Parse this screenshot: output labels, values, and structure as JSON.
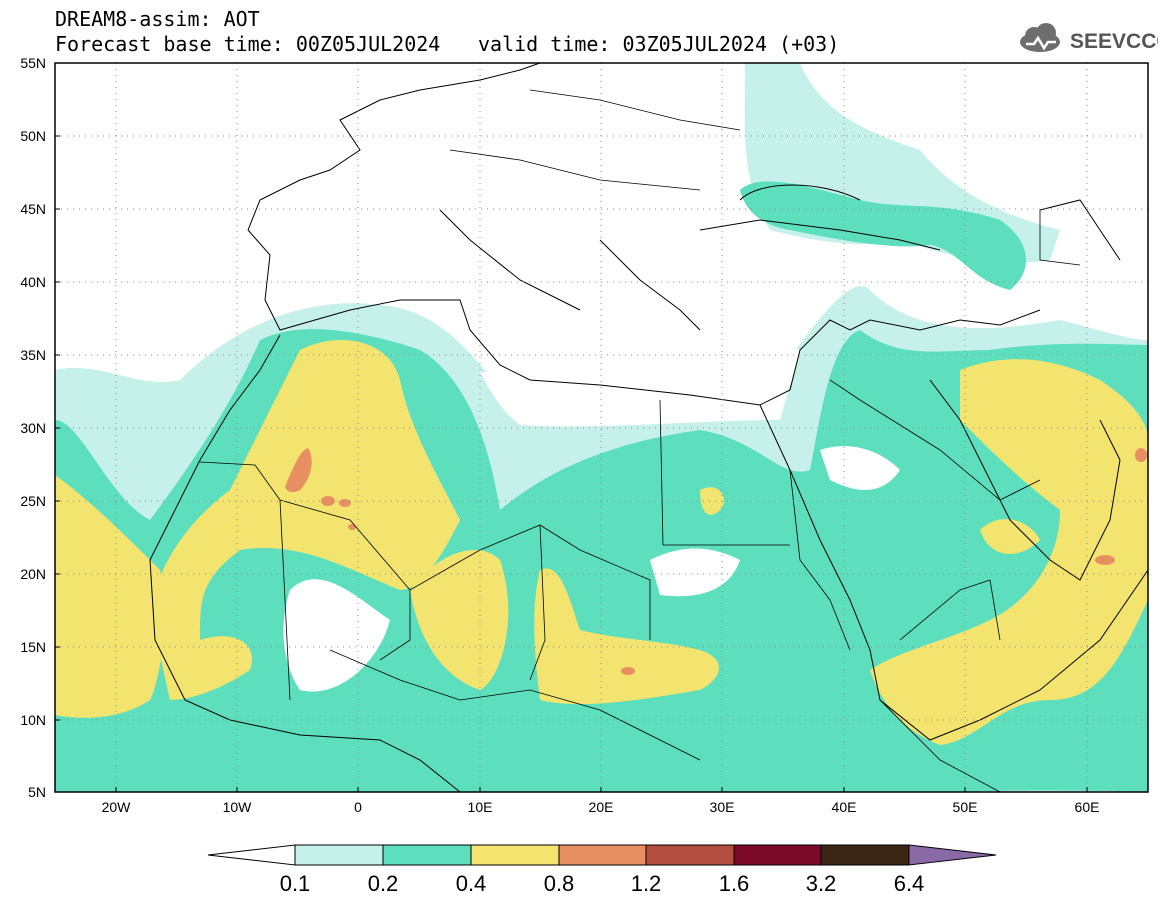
{
  "header": {
    "title": "DREAM8-assim: AOT",
    "base_time": "Forecast base time: 00Z05JUL2024",
    "valid_time": "valid time: 03Z05JUL2024 (+03)"
  },
  "logo": {
    "text": "SEEVCCC",
    "icon": "cloud-icon"
  },
  "map": {
    "lat_labels": [
      "55N",
      "50N",
      "45N",
      "40N",
      "35N",
      "30N",
      "25N",
      "20N",
      "15N",
      "10N",
      "5N"
    ],
    "lon_labels": [
      "20W",
      "10W",
      "0",
      "10E",
      "20E",
      "30E",
      "40E",
      "50E",
      "60E"
    ],
    "lon_range": [
      -25,
      65
    ],
    "lat_range": [
      5,
      55
    ]
  },
  "colorbar": {
    "levels": [
      "0.1",
      "0.2",
      "0.4",
      "0.8",
      "1.2",
      "1.6",
      "3.2",
      "6.4"
    ],
    "colors": [
      "#c6f0ea",
      "#5ddfbe",
      "#f3e46f",
      "#e88f62",
      "#b34f40",
      "#7b0a2a",
      "#3b2615",
      "#8a6aa6"
    ],
    "under_color": "#ffffff"
  },
  "palette": {
    "aot_01": "#c6f0ea",
    "aot_02": "#5ddfbe",
    "aot_04": "#f3e46f",
    "aot_08": "#e88f62"
  }
}
